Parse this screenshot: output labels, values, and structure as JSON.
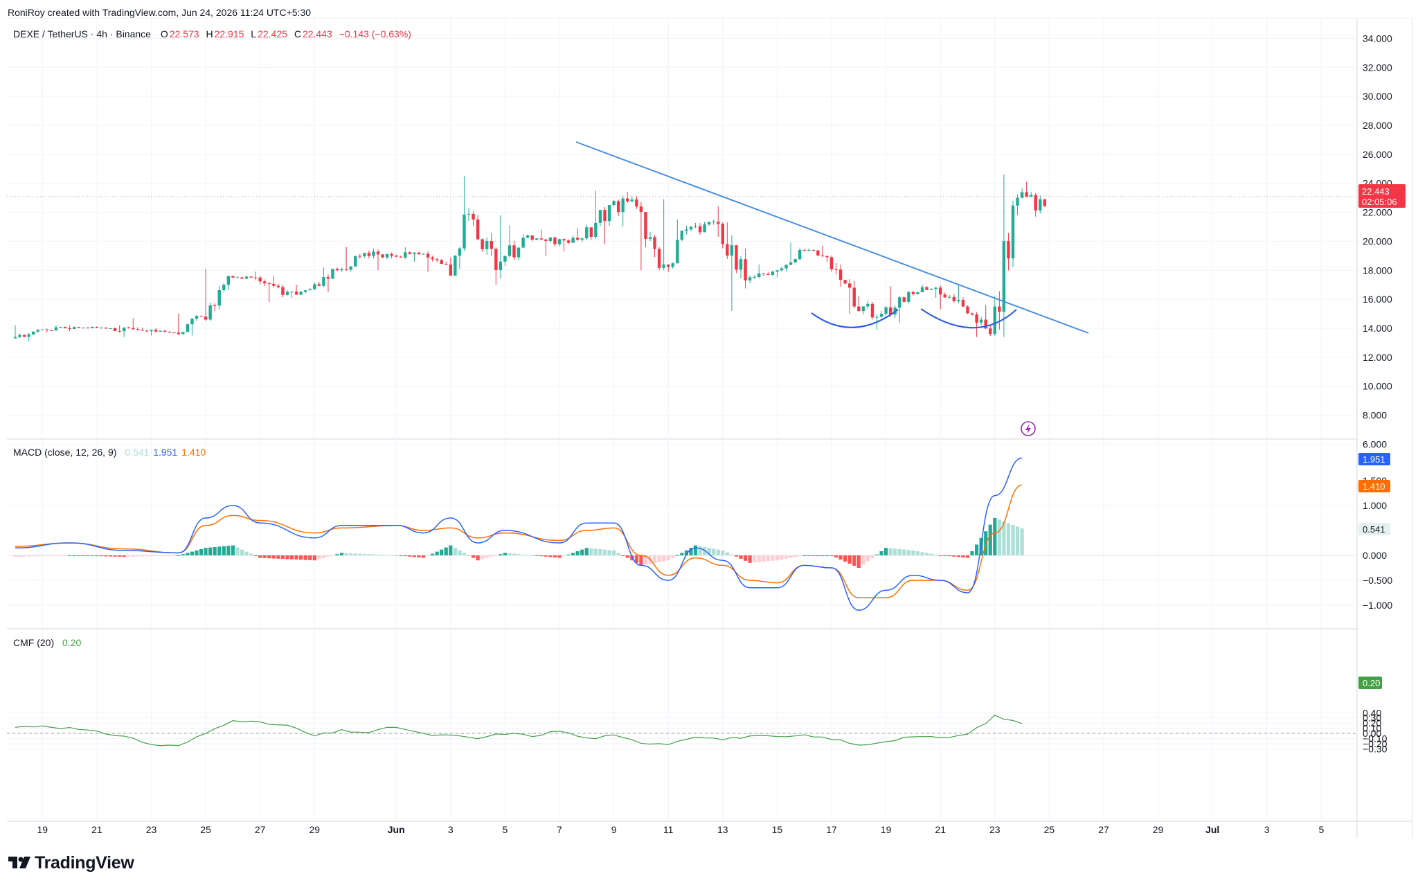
{
  "header": {
    "credit": "RoniRoy created with TradingView.com, Jun 24, 2026 11:24 UTC+5:30"
  },
  "symbol_legend": {
    "symbol": "DEXE / TetherUS · 4h · Binance",
    "open_label": "O",
    "open": "22.573",
    "high_label": "H",
    "high": "22.915",
    "low_label": "L",
    "low": "22.425",
    "close_label": "C",
    "close": "22.443",
    "change": "−0.143 (−0.63%)"
  },
  "price_badge": {
    "price": "22.443",
    "countdown": "02:05:06"
  },
  "macd_legend": {
    "label": "MACD (close, 12, 26, 9)",
    "hist": "0.541",
    "macd": "1.951",
    "signal": "1.410"
  },
  "cmf_legend": {
    "label": "CMF (20)",
    "value": "0.20"
  },
  "x_axis_labels": [
    "19",
    "21",
    "23",
    "25",
    "27",
    "29",
    "Jun",
    "3",
    "5",
    "7",
    "9",
    "11",
    "13",
    "15",
    "17",
    "19",
    "21",
    "23",
    "25",
    "27",
    "29",
    "Jul",
    "3",
    "5"
  ],
  "price_axis": [
    "34.000",
    "32.000",
    "30.000",
    "28.000",
    "26.000",
    "24.000",
    "22.000",
    "20.000",
    "18.000",
    "16.000",
    "14.000",
    "12.000",
    "10.000",
    "8.000",
    "6.000"
  ],
  "macd_axis": [
    "1.000",
    "0.000",
    "−0.500",
    "−1.000"
  ],
  "macd_axis_partial": "1.500",
  "cmf_axis": [
    "0.40",
    "0.30",
    "0.20",
    "0.10",
    "0.00",
    "−0.10",
    "−0.20",
    "−0.30"
  ],
  "colors": {
    "up": "#22ab94",
    "down": "#f23645",
    "macd_line": "#2962ff",
    "signal_line": "#ff6d00",
    "hist_up_strong": "#22ab94",
    "hist_up_weak": "#acdfd5",
    "hist_down_strong": "#ff5252",
    "hist_down_weak": "#ffcdd2",
    "cmf_line": "#43a047",
    "trendline": "#4a90e2",
    "pattern_arc": "#2f5fe0",
    "alert_icon": "#9c27b0"
  },
  "footer": {
    "brand": "TradingView",
    "logo_icon": "tradingview-logo-icon"
  },
  "chart_data": [
    {
      "type": "candlestick",
      "title": "DEXE / TetherUS · 4h · Binance",
      "x_range": [
        "May 18",
        "Jul 6"
      ],
      "ylim": [
        6,
        34
      ],
      "last_price": 22.443,
      "annotations": [
        "descending trendline from ~25.8 (Jun 7) to ~12.7 (Jun 26)",
        "two rounded-bottom arcs near 14 (Jun 17-19, Jun 20-24)"
      ],
      "daily_ohlc_approx": [
        {
          "date": "May 18",
          "open": 13.3,
          "high": 14.2,
          "low": 13.1,
          "close": 13.9
        },
        {
          "date": "May 19",
          "open": 13.9,
          "high": 14.2,
          "low": 13.7,
          "close": 14.0
        },
        {
          "date": "May 20",
          "open": 14.0,
          "high": 14.2,
          "low": 13.8,
          "close": 14.1
        },
        {
          "date": "May 21",
          "open": 14.1,
          "high": 14.2,
          "low": 13.7,
          "close": 13.8
        },
        {
          "date": "May 22",
          "open": 13.8,
          "high": 14.7,
          "low": 13.4,
          "close": 13.8
        },
        {
          "date": "May 23",
          "open": 13.8,
          "high": 14.0,
          "low": 13.5,
          "close": 13.7
        },
        {
          "date": "May 24",
          "open": 13.7,
          "high": 15.0,
          "low": 13.5,
          "close": 14.8
        },
        {
          "date": "May 25",
          "open": 14.8,
          "high": 18.1,
          "low": 14.5,
          "close": 17.6
        },
        {
          "date": "May 26",
          "open": 17.6,
          "high": 17.9,
          "low": 17.3,
          "close": 17.5
        },
        {
          "date": "May 27",
          "open": 17.5,
          "high": 17.6,
          "low": 15.8,
          "close": 16.3
        },
        {
          "date": "May 28",
          "open": 16.3,
          "high": 17.0,
          "low": 16.1,
          "close": 16.7
        },
        {
          "date": "May 29",
          "open": 16.7,
          "high": 18.2,
          "low": 16.5,
          "close": 18.0
        },
        {
          "date": "May 30",
          "open": 18.0,
          "high": 19.6,
          "low": 17.9,
          "close": 19.2
        },
        {
          "date": "May 31",
          "open": 19.2,
          "high": 19.5,
          "low": 18.0,
          "close": 19.0
        },
        {
          "date": "Jun 1",
          "open": 19.0,
          "high": 19.6,
          "low": 18.6,
          "close": 19.1
        },
        {
          "date": "Jun 2",
          "open": 19.1,
          "high": 19.3,
          "low": 17.9,
          "close": 18.4
        },
        {
          "date": "Jun 3",
          "open": 18.4,
          "high": 24.5,
          "low": 18.1,
          "close": 21.5
        },
        {
          "date": "Jun 4",
          "open": 21.5,
          "high": 21.8,
          "low": 17.0,
          "close": 18.6
        },
        {
          "date": "Jun 5",
          "open": 18.6,
          "high": 21.1,
          "low": 18.3,
          "close": 20.4
        },
        {
          "date": "Jun 6",
          "open": 20.4,
          "high": 20.8,
          "low": 19.0,
          "close": 19.8
        },
        {
          "date": "Jun 7",
          "open": 19.8,
          "high": 20.9,
          "low": 19.3,
          "close": 20.2
        },
        {
          "date": "Jun 8",
          "open": 20.2,
          "high": 23.5,
          "low": 19.8,
          "close": 22.5
        },
        {
          "date": "Jun 9",
          "open": 22.5,
          "high": 23.4,
          "low": 21.0,
          "close": 22.4
        },
        {
          "date": "Jun 10",
          "open": 22.4,
          "high": 22.9,
          "low": 18.0,
          "close": 18.4
        },
        {
          "date": "Jun 11",
          "open": 18.4,
          "high": 21.5,
          "low": 17.9,
          "close": 21.0
        },
        {
          "date": "Jun 12",
          "open": 21.0,
          "high": 22.4,
          "low": 20.3,
          "close": 21.2
        },
        {
          "date": "Jun 13",
          "open": 21.2,
          "high": 21.3,
          "low": 15.2,
          "close": 17.3
        },
        {
          "date": "Jun 14",
          "open": 17.3,
          "high": 18.4,
          "low": 17.1,
          "close": 17.9
        },
        {
          "date": "Jun 15",
          "open": 17.9,
          "high": 19.9,
          "low": 17.5,
          "close": 19.4
        },
        {
          "date": "Jun 16",
          "open": 19.4,
          "high": 19.7,
          "low": 18.6,
          "close": 18.9
        },
        {
          "date": "Jun 17",
          "open": 18.9,
          "high": 19.0,
          "low": 15.0,
          "close": 15.5
        },
        {
          "date": "Jun 18",
          "open": 15.5,
          "high": 16.2,
          "low": 13.9,
          "close": 15.0
        },
        {
          "date": "Jun 19",
          "open": 15.0,
          "high": 16.9,
          "low": 14.4,
          "close": 16.5
        },
        {
          "date": "Jun 20",
          "open": 16.5,
          "high": 17.0,
          "low": 16.1,
          "close": 16.8
        },
        {
          "date": "Jun 21",
          "open": 16.8,
          "high": 17.0,
          "low": 15.3,
          "close": 15.5
        },
        {
          "date": "Jun 22",
          "open": 15.5,
          "high": 15.6,
          "low": 13.4,
          "close": 13.6
        },
        {
          "date": "Jun 23",
          "open": 13.6,
          "high": 24.6,
          "low": 13.4,
          "close": 23.0
        },
        {
          "date": "Jun 24",
          "open": 23.0,
          "high": 24.1,
          "low": 21.7,
          "close": 22.443
        }
      ]
    },
    {
      "type": "line",
      "title": "MACD (close, 12, 26, 9)",
      "ylim": [
        -1.25,
        2.1
      ],
      "last": {
        "histogram": 0.541,
        "macd": 1.951,
        "signal": 1.41
      },
      "series": [
        {
          "name": "MACD",
          "points": [
            [
              "May 18",
              0.15
            ],
            [
              "May 20",
              0.25
            ],
            [
              "May 22",
              0.1
            ],
            [
              "May 24",
              0.05
            ],
            [
              "May 25",
              0.75
            ],
            [
              "May 26",
              1.0
            ],
            [
              "May 27",
              0.65
            ],
            [
              "May 29",
              0.35
            ],
            [
              "May 30",
              0.6
            ],
            [
              "Jun 1",
              0.6
            ],
            [
              "Jun 2",
              0.45
            ],
            [
              "Jun 3",
              0.75
            ],
            [
              "Jun 4",
              0.25
            ],
            [
              "Jun 5",
              0.5
            ],
            [
              "Jun 7",
              0.25
            ],
            [
              "Jun 8",
              0.65
            ],
            [
              "Jun 9",
              0.65
            ],
            [
              "Jun 10",
              -0.2
            ],
            [
              "Jun 11",
              -0.5
            ],
            [
              "Jun 12",
              0.15
            ],
            [
              "Jun 13",
              -0.1
            ],
            [
              "Jun 14",
              -0.65
            ],
            [
              "Jun 15",
              -0.65
            ],
            [
              "Jun 16",
              -0.2
            ],
            [
              "Jun 17",
              -0.25
            ],
            [
              "Jun 18",
              -1.1
            ],
            [
              "Jun 19",
              -0.7
            ],
            [
              "Jun 20",
              -0.4
            ],
            [
              "Jun 21",
              -0.5
            ],
            [
              "Jun 22",
              -0.75
            ],
            [
              "Jun 23",
              1.2
            ],
            [
              "Jun 24",
              1.951
            ]
          ]
        },
        {
          "name": "Signal",
          "points": [
            [
              "May 18",
              0.18
            ],
            [
              "May 20",
              0.25
            ],
            [
              "May 22",
              0.13
            ],
            [
              "May 24",
              0.05
            ],
            [
              "May 25",
              0.6
            ],
            [
              "May 26",
              0.8
            ],
            [
              "May 27",
              0.7
            ],
            [
              "May 29",
              0.45
            ],
            [
              "May 30",
              0.55
            ],
            [
              "Jun 1",
              0.6
            ],
            [
              "Jun 2",
              0.5
            ],
            [
              "Jun 3",
              0.55
            ],
            [
              "Jun 4",
              0.35
            ],
            [
              "Jun 5",
              0.45
            ],
            [
              "Jun 7",
              0.3
            ],
            [
              "Jun 8",
              0.5
            ],
            [
              "Jun 9",
              0.55
            ],
            [
              "Jun 10",
              0.0
            ],
            [
              "Jun 11",
              -0.4
            ],
            [
              "Jun 12",
              -0.05
            ],
            [
              "Jun 13",
              -0.2
            ],
            [
              "Jun 14",
              -0.5
            ],
            [
              "Jun 15",
              -0.55
            ],
            [
              "Jun 16",
              -0.2
            ],
            [
              "Jun 17",
              -0.25
            ],
            [
              "Jun 18",
              -0.85
            ],
            [
              "Jun 19",
              -0.85
            ],
            [
              "Jun 20",
              -0.5
            ],
            [
              "Jun 21",
              -0.5
            ],
            [
              "Jun 22",
              -0.7
            ],
            [
              "Jun 23",
              0.45
            ],
            [
              "Jun 24",
              1.41
            ]
          ]
        }
      ]
    },
    {
      "type": "line",
      "title": "CMF (20)",
      "ylim": [
        -0.33,
        0.4
      ],
      "last": 0.2,
      "series": [
        {
          "name": "CMF",
          "points": [
            [
              "May 18",
              0.12
            ],
            [
              "May 19",
              0.15
            ],
            [
              "May 20",
              0.1
            ],
            [
              "May 21",
              0.02
            ],
            [
              "May 22",
              -0.05
            ],
            [
              "May 23",
              -0.22
            ],
            [
              "May 24",
              -0.25
            ],
            [
              "May 25",
              0.0
            ],
            [
              "May 26",
              0.27
            ],
            [
              "May 27",
              0.2
            ],
            [
              "May 28",
              0.15
            ],
            [
              "May 29",
              -0.05
            ],
            [
              "May 30",
              0.05
            ],
            [
              "May 31",
              0.02
            ],
            [
              "Jun 1",
              0.13
            ],
            [
              "Jun 2",
              -0.02
            ],
            [
              "Jun 3",
              -0.05
            ],
            [
              "Jun 4",
              -0.1
            ],
            [
              "Jun 5",
              -0.0
            ],
            [
              "Jun 6",
              -0.05
            ],
            [
              "Jun 7",
              0.05
            ],
            [
              "Jun 8",
              -0.1
            ],
            [
              "Jun 9",
              -0.05
            ],
            [
              "Jun 10",
              -0.18
            ],
            [
              "Jun 11",
              -0.2
            ],
            [
              "Jun 12",
              -0.05
            ],
            [
              "Jun 13",
              -0.12
            ],
            [
              "Jun 14",
              -0.05
            ],
            [
              "Jun 15",
              -0.08
            ],
            [
              "Jun 16",
              -0.05
            ],
            [
              "Jun 17",
              -0.1
            ],
            [
              "Jun 18",
              -0.24
            ],
            [
              "Jun 19",
              -0.15
            ],
            [
              "Jun 20",
              -0.05
            ],
            [
              "Jun 21",
              -0.1
            ],
            [
              "Jun 22",
              -0.02
            ],
            [
              "Jun 23",
              0.33
            ],
            [
              "Jun 24",
              0.2
            ]
          ]
        }
      ]
    }
  ]
}
